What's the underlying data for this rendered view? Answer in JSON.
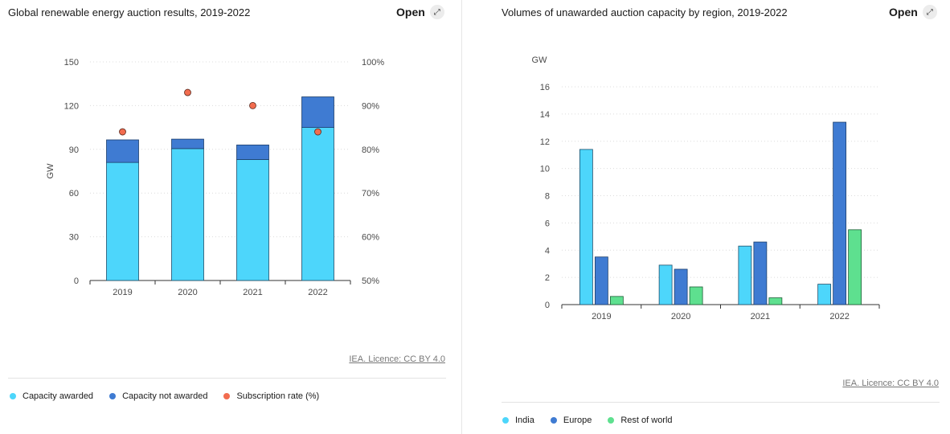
{
  "colors": {
    "capacity_awarded": "#4dd6fb",
    "capacity_not_awarded": "#3f7bd2",
    "subscription_rate": "#f26c4f",
    "india": "#4dd6fb",
    "europe": "#3f7bd2",
    "rest_of_world": "#5ee08f"
  },
  "left": {
    "title": "Global renewable energy auction results, 2019-2022",
    "open_label": "Open",
    "open_icon": "expand-icon",
    "licence": "IEA. Licence: CC BY 4.0"
  },
  "right": {
    "title": "Volumes of unawarded auction capacity by region, 2019-2022",
    "open_label": "Open",
    "open_icon": "expand-icon",
    "licence": "IEA. Licence: CC BY 4.0"
  },
  "chart_data": [
    {
      "type": "bar",
      "stacked": true,
      "title": "Global renewable energy auction results, 2019-2022",
      "categories": [
        "2019",
        "2020",
        "2021",
        "2022"
      ],
      "ylabel": "GW",
      "ylim": [
        0,
        150
      ],
      "yticks": [
        0,
        30,
        60,
        90,
        120,
        150
      ],
      "y2lim": [
        50,
        100
      ],
      "y2ticks": [
        "50%",
        "60%",
        "70%",
        "80%",
        "90%",
        "100%"
      ],
      "series": [
        {
          "name": "Capacity awarded",
          "values": [
            81,
            90.5,
            83,
            105
          ],
          "axis": "left"
        },
        {
          "name": "Capacity not awarded",
          "values": [
            15.5,
            6.5,
            10,
            21
          ],
          "axis": "left"
        },
        {
          "name": "Subscription rate (%)",
          "type": "scatter",
          "values": [
            84,
            93,
            90,
            84
          ],
          "axis": "right"
        }
      ],
      "grid": true,
      "legend": "bottom"
    },
    {
      "type": "bar",
      "title": "Volumes of unawarded auction capacity by region, 2019-2022",
      "categories": [
        "2019",
        "2020",
        "2021",
        "2022"
      ],
      "ylabel": "GW",
      "ylim": [
        0,
        16
      ],
      "yticks": [
        0,
        2,
        4,
        6,
        8,
        10,
        12,
        14,
        16
      ],
      "series": [
        {
          "name": "India",
          "values": [
            11.4,
            2.9,
            4.3,
            1.5
          ]
        },
        {
          "name": "Europe",
          "values": [
            3.5,
            2.6,
            4.6,
            13.4
          ]
        },
        {
          "name": "Rest of world",
          "values": [
            0.6,
            1.3,
            0.5,
            5.5
          ]
        }
      ],
      "grid": true,
      "legend": "bottom"
    }
  ]
}
